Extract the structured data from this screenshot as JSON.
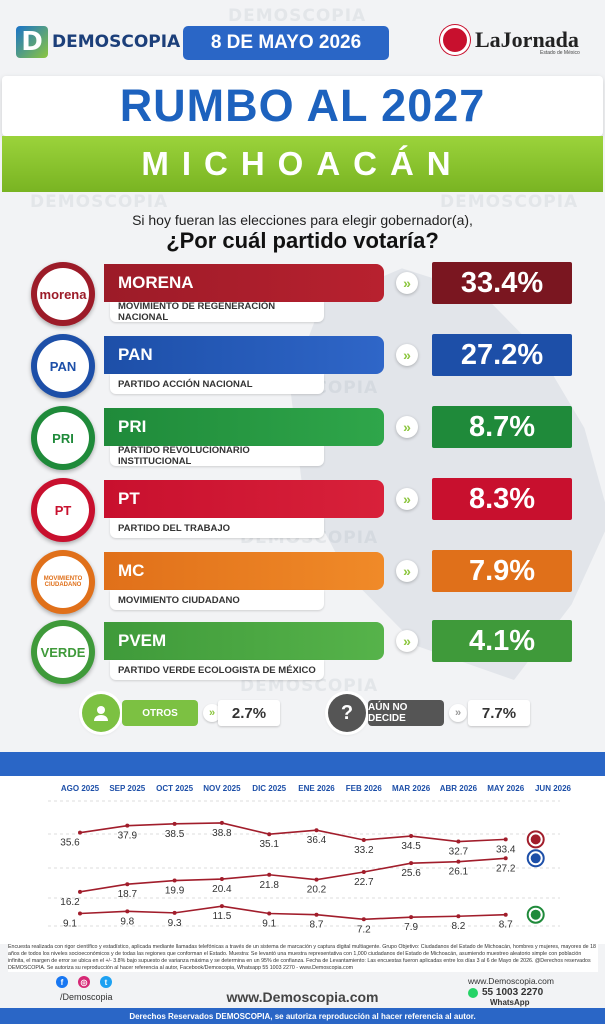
{
  "header": {
    "brand": "DEMOSCOPIA",
    "date": "8 DE MAYO 2026",
    "partner": "LaJornada",
    "partner_sub": "Estado de México",
    "title": "RUMBO AL 2027",
    "state": "MICHOACÁN"
  },
  "watermark": "DEMOSCOPIA",
  "question": {
    "line1": "Si hoy fueran las elecciones para elegir gobernador(a),",
    "line2": "¿Por cuál partido votaría?"
  },
  "parties": [
    {
      "short": "MORENA",
      "full": "MOVIMIENTO DE REGENERACIÓN NACIONAL",
      "value": "33.4%",
      "logo_text": "morena",
      "color": "#9c1b28",
      "color2": "#b8212f",
      "value_color": "#7a1620"
    },
    {
      "short": "PAN",
      "full": "PARTIDO ACCIÓN NACIONAL",
      "value": "27.2%",
      "logo_text": "PAN",
      "color": "#1d4fa8",
      "color2": "#2f66c8",
      "value_color": "#1d4fa8"
    },
    {
      "short": "PRI",
      "full": "PARTIDO REVOLUCIONARIO INSTITUCIONAL",
      "value": "8.7%",
      "logo_text": "PRI",
      "color": "#1f8a3a",
      "color2": "#2fa64a",
      "value_color": "#1f8a3a"
    },
    {
      "short": "PT",
      "full": "PARTIDO DEL TRABAJO",
      "value": "8.3%",
      "logo_text": "PT",
      "color": "#c8102e",
      "color2": "#d8213a",
      "value_color": "#c8102e"
    },
    {
      "short": "MC",
      "full": "MOVIMIENTO CIUDADANO",
      "value": "7.9%",
      "logo_text": "MOVIMIENTO CIUDADANO",
      "color": "#e0701a",
      "color2": "#f08a28",
      "value_color": "#e0701a"
    },
    {
      "short": "PVEM",
      "full": "PARTIDO VERDE ECOLOGISTA DE MÉXICO",
      "value": "4.1%",
      "logo_text": "VERDE",
      "color": "#3f9a3a",
      "color2": "#56b34a",
      "value_color": "#3f9a3a"
    }
  ],
  "others": {
    "label": "OTROS",
    "value": "2.7%"
  },
  "undecided": {
    "label": "AÚN NO DECIDE",
    "value": "7.7%"
  },
  "chart_data": {
    "type": "line",
    "categories": [
      "AGO 2025",
      "SEP 2025",
      "OCT 2025",
      "NOV 2025",
      "DIC 2025",
      "ENE 2026",
      "FEB 2026",
      "MAR 2026",
      "ABR 2026",
      "MAY 2026",
      "JUN 2026"
    ],
    "series": [
      {
        "name": "morena",
        "color": "#a11d2b",
        "values": [
          35.6,
          37.9,
          38.5,
          38.8,
          35.1,
          36.4,
          33.2,
          34.5,
          32.7,
          33.4,
          null
        ],
        "labels": [
          "35.6",
          "37.9",
          "38.5",
          "38.8",
          "35.1",
          "36.4",
          "33.2",
          "34.5",
          "32.7",
          "33.4",
          ""
        ]
      },
      {
        "name": "PAN",
        "color": "#a11d2b",
        "values": [
          16.2,
          18.7,
          19.9,
          20.4,
          21.8,
          20.2,
          22.7,
          25.6,
          26.1,
          27.2,
          null
        ],
        "labels": [
          "16.2",
          "18.7",
          "19.9",
          "20.4",
          "21.8",
          "20.2",
          "22.7",
          "25.6",
          "26.1",
          "27.2",
          ""
        ]
      },
      {
        "name": "PRI",
        "color": "#a11d2b",
        "values": [
          9.1,
          9.8,
          9.3,
          11.5,
          9.1,
          8.7,
          7.2,
          7.9,
          8.2,
          8.7,
          null
        ],
        "labels": [
          "9.1",
          "9.8",
          "9.3",
          "11.5",
          "9.1",
          "8.7",
          "7.2",
          "7.9",
          "8.2",
          "8.7",
          ""
        ]
      }
    ],
    "grid": true
  },
  "footnote": "Encuesta realizada con rigor científico y estadístico, aplicada mediante llamadas telefónicas a través de un sistema de marcación y captura digital multiagente. Grupo Objetivo: Ciudadanos del Estado de Michoacán, hombres y mujeres, mayores de 18 años de todos los niveles socioeconómicos y de todas las regiones que conforman el Estado. Muestra: Se levantó una muestra representativa con 1,000 ciudadanos del Estado de Michoacán, asumiendo muestreo aleatorio simple con población infinita, el margen de error se ubica en el +/- 3.8% bajo supuesto de varianza máxima y se determina en un 95% de confianza. Fecha de Levantamiento: Las encuestas fueron aplicadas entre los días 3 al 6 de Mayo de 2026. @Derechos reservados DEMOSCOPIA. Se autoriza su reproducción al hacer referencia al autor, Facebook/Demoscopia, Whatsapp 55 1003 2270 - www.Demoscopia.com",
  "footer": {
    "handle": "/Demoscopia",
    "website": "www.Demoscopia.com",
    "right_site": "www.Demoscopia.com",
    "phone": "55 1003 2270",
    "whatsapp": "WhatsApp",
    "rights": "Derechos Reservados DEMOSCOPIA, se autoriza reproducción al hacer referencia al autor."
  }
}
